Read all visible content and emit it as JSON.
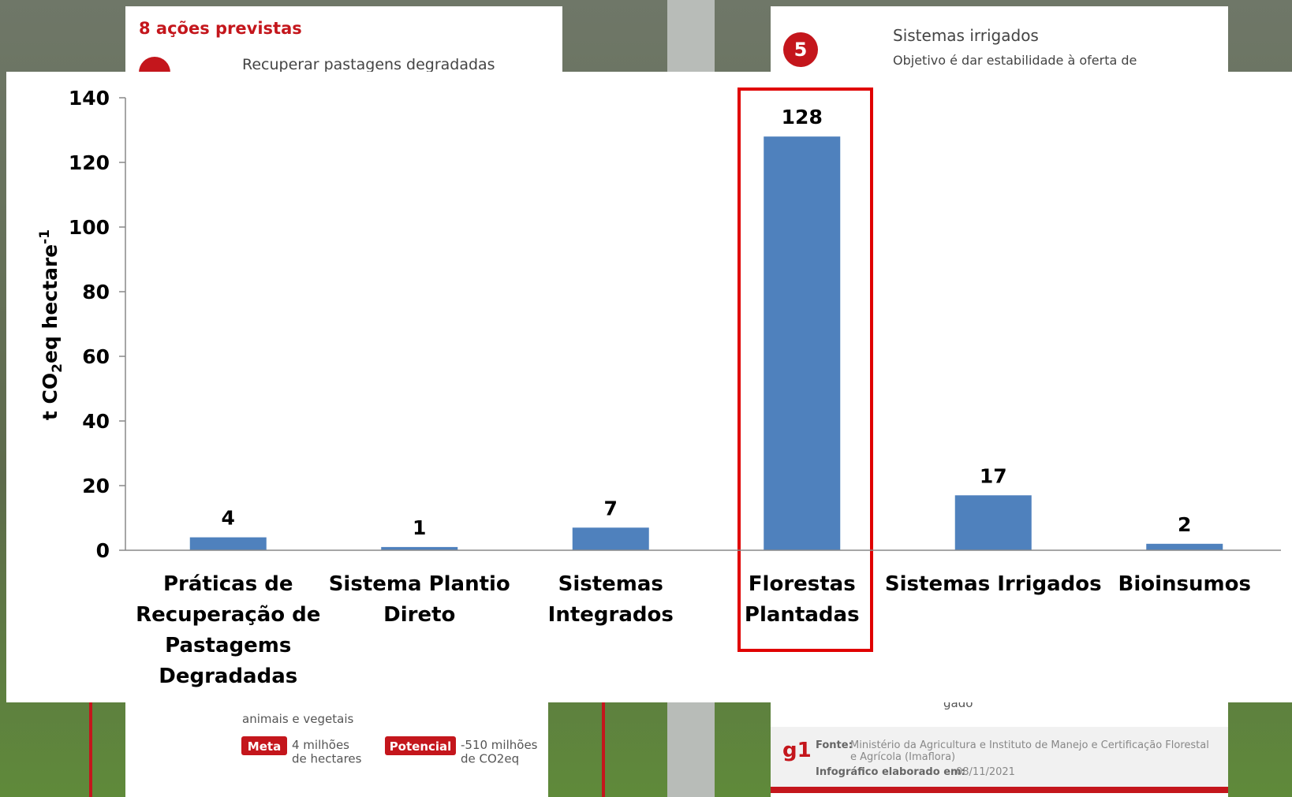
{
  "chart_data": {
    "type": "bar",
    "y_label_parts": [
      "t CO",
      "2",
      "eq hectare",
      "-1"
    ],
    "categories": [
      "Práticas de\nRecuperação de\nPastagems\nDegradadas",
      "Sistema Plantio\nDireto",
      "Sistemas\nIntegrados",
      "Florestas\nPlantadas",
      "Sistemas Irrigados",
      "Bioinsumos"
    ],
    "values": [
      4,
      1,
      7,
      128,
      17,
      2
    ],
    "color": "#4f81bd",
    "ylim": [
      0,
      140
    ],
    "yticks": [
      0,
      20,
      40,
      60,
      80,
      100,
      120,
      140
    ],
    "grid": false
  },
  "background": {
    "left_card_title": "8 ações previstas",
    "left_card_item": "Recuperar pastagens degradadas",
    "right_card_number": "5",
    "right_card_title": "Sistemas irrigados",
    "right_card_text": "Objetivo é dar estabilidade à oferta de",
    "left_bottom_text": "animais e vegetais",
    "meta_badge": "Meta",
    "meta_text": "4 milhões\nde hectares",
    "potencial_badge": "Potencial",
    "potencial_text": "-510 milhões\nde CO2eq",
    "right_bottom_text": "gado",
    "logo": "g1",
    "source_label": "Fonte:",
    "source_text": "Ministério da Agricultura e Instituto de Manejo e Certificação Florestal\ne Agrícola (Imaflora)",
    "date_label": "Infográfico elaborado em:",
    "date_text": "08/11/2021"
  }
}
